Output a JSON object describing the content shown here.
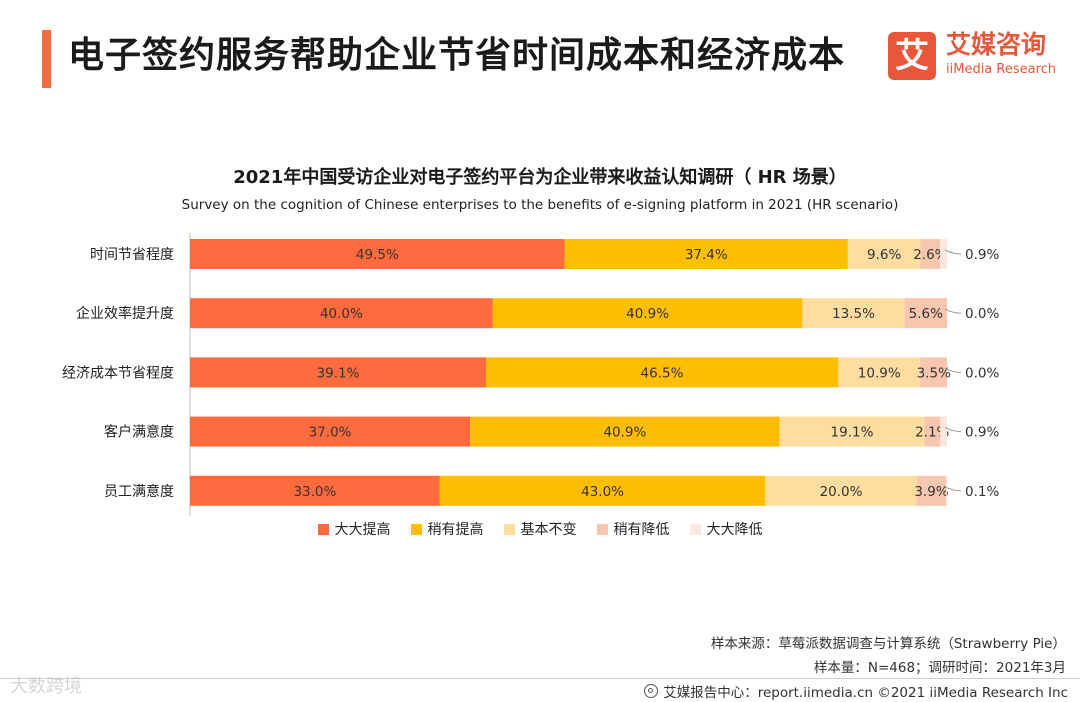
{
  "header": {
    "title": "电子签约服务帮助企业节省时间成本和经济成本",
    "accent_color": "#F26A41"
  },
  "logo": {
    "mark": "艾",
    "cn": "艾媒咨询",
    "en": "iiMedia Research",
    "color": "#E8573A"
  },
  "chart_data": {
    "type": "bar",
    "orientation": "horizontal",
    "stacked": "percent",
    "title": "2021年中国受访企业对电子签约平台为企业带来收益认知调研（ HR 场景）",
    "subtitle": "Survey on the cognition of Chinese enterprises to the benefits of e-signing platform in 2021 (HR scenario)",
    "categories": [
      "时间节省程度",
      "企业效率提升度",
      "经济成本节省程度",
      "客户满意度",
      "员工满意度"
    ],
    "series": [
      {
        "name": "大大提高",
        "color": "#FF6B3D",
        "values": [
          49.5,
          40.0,
          39.1,
          37.0,
          33.0
        ]
      },
      {
        "name": "稍有提高",
        "color": "#FFBE00",
        "values": [
          37.4,
          40.9,
          46.5,
          40.9,
          43.0
        ]
      },
      {
        "name": "基本不变",
        "color": "#FFDDA0",
        "values": [
          9.6,
          13.5,
          10.9,
          19.1,
          20.0
        ]
      },
      {
        "name": "稍有降低",
        "color": "#F6C6AE",
        "values": [
          2.6,
          5.6,
          3.5,
          2.1,
          3.9
        ]
      },
      {
        "name": "大大降低",
        "color": "#FCE8DE",
        "values": [
          0.9,
          0.0,
          0.0,
          0.9,
          0.1
        ]
      }
    ],
    "xlim": [
      0,
      100
    ],
    "legend_position": "bottom"
  },
  "source": {
    "line1": "样本来源：草莓派数据调查与计算系统（Strawberry Pie）",
    "line2": "样本量：N=468；调研时间：2021年3月"
  },
  "footer": {
    "text": "艾媒报告中心：report.iimedia.cn   ©2021  iiMedia Research  Inc"
  },
  "watermark": {
    "text": "大数跨境"
  }
}
